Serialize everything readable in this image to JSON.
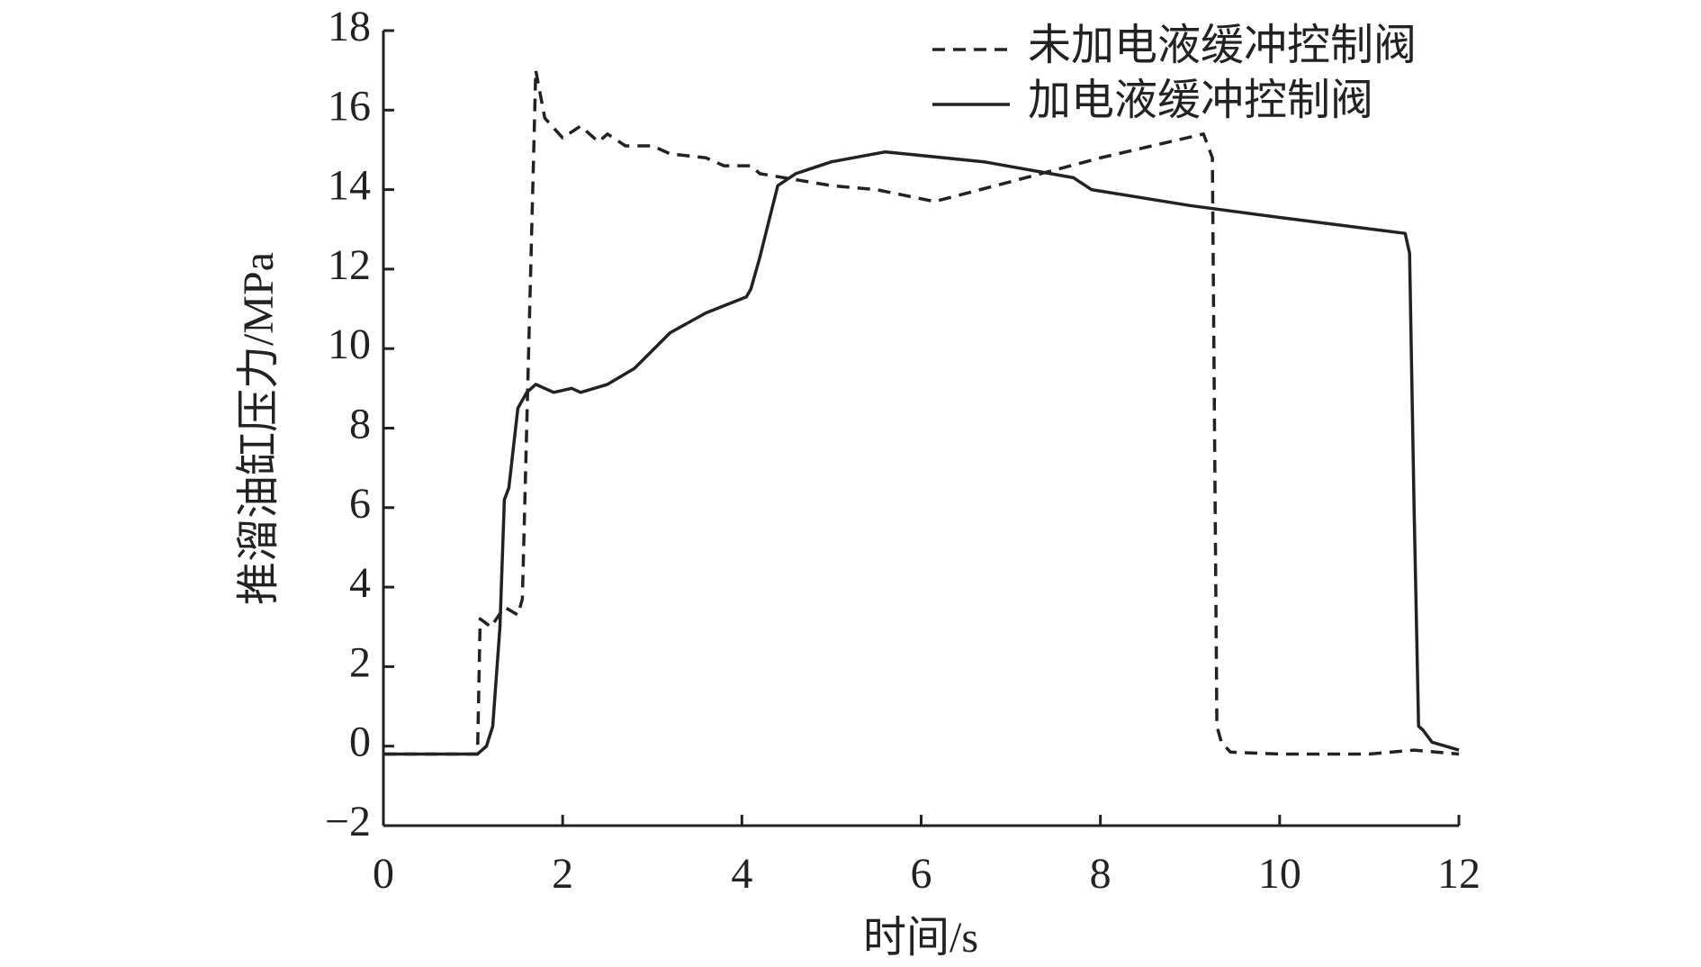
{
  "chart_data": {
    "type": "line",
    "xlabel": "时间/s",
    "ylabel": "推溜油缸压力/MPa",
    "xlim": [
      0,
      12
    ],
    "xticks": [
      0,
      2,
      4,
      6,
      8,
      10,
      12
    ],
    "ylim": [
      -2,
      18
    ],
    "yticks": [
      {
        "value": -2,
        "label": "−2"
      },
      0,
      2,
      4,
      6,
      8,
      10,
      12,
      14,
      16,
      18
    ],
    "legend": "upper right",
    "grid": false,
    "series": [
      {
        "name": "未加电液缓冲控制阀",
        "color": "#222222",
        "style": "dashed",
        "x": [
          0,
          1.05,
          1.08,
          1.2,
          1.35,
          1.5,
          1.55,
          1.7,
          1.8,
          2.0,
          2.2,
          2.4,
          2.5,
          2.7,
          3.0,
          3.2,
          3.6,
          3.8,
          4.1,
          4.2,
          5.0,
          5.5,
          6.15,
          7.0,
          8.0,
          9.15,
          9.25,
          9.3,
          9.35,
          9.45,
          10,
          11,
          11.5,
          12
        ],
        "values": [
          -0.2,
          -0.2,
          3.2,
          3.0,
          3.5,
          3.3,
          3.7,
          17.0,
          15.8,
          15.3,
          15.6,
          15.2,
          15.4,
          15.1,
          15.1,
          14.9,
          14.8,
          14.6,
          14.6,
          14.4,
          14.1,
          14.0,
          13.7,
          14.2,
          14.8,
          15.4,
          14.8,
          0.5,
          0.1,
          -0.15,
          -0.2,
          -0.2,
          -0.1,
          -0.2
        ]
      },
      {
        "name": "加电液缓冲控制阀",
        "color": "#222222",
        "style": "solid",
        "x": [
          0,
          1.05,
          1.15,
          1.22,
          1.3,
          1.35,
          1.4,
          1.5,
          1.6,
          1.7,
          1.9,
          2.1,
          2.2,
          2.5,
          2.8,
          3.2,
          3.6,
          4.05,
          4.1,
          4.2,
          4.3,
          4.4,
          4.6,
          5.0,
          5.6,
          6.7,
          7.7,
          7.9,
          9,
          10,
          11.4,
          11.45,
          11.5,
          11.55,
          11.6,
          11.7,
          12
        ],
        "values": [
          -0.2,
          -0.2,
          0,
          0.5,
          3,
          6.2,
          6.5,
          8.5,
          8.9,
          9.1,
          8.9,
          9.0,
          8.9,
          9.1,
          9.5,
          10.4,
          10.9,
          11.3,
          11.5,
          12.3,
          13.2,
          14.1,
          14.4,
          14.7,
          14.95,
          14.7,
          14.3,
          14.0,
          13.6,
          13.3,
          12.9,
          12.4,
          6,
          0.5,
          0.4,
          0.1,
          -0.1
        ]
      }
    ]
  }
}
